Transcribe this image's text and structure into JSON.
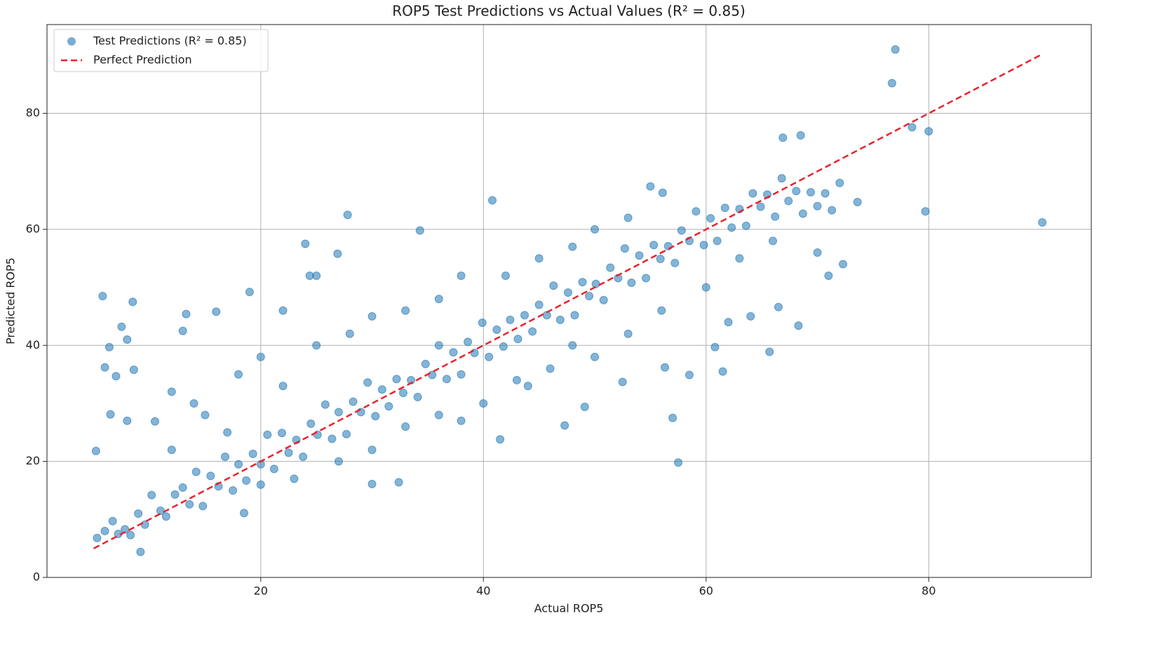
{
  "chart_data": {
    "type": "scatter",
    "title": "ROP5 Test Predictions vs Actual Values (R² = 0.85)",
    "x_label": "Actual ROP5",
    "y_label": "Predicted ROP5",
    "xlim": [
      0.8,
      94.6
    ],
    "ylim": [
      0,
      95.3
    ],
    "xticks": [
      20,
      40,
      60,
      80
    ],
    "yticks": [
      0,
      20,
      40,
      60,
      80
    ],
    "grid": true,
    "legend": "upper left",
    "series": [
      {
        "name": "Test Predictions (R² = 0.85)",
        "color": "#1f77b4",
        "mark": "point",
        "x": [
          5.3,
          6,
          6.7,
          7.2,
          7.8,
          8.3,
          9,
          9.6,
          10.2,
          11,
          11.5,
          12.3,
          13,
          13.6,
          14.2,
          14.8,
          15.5,
          16.2,
          16.8,
          17.5,
          18,
          18.7,
          19.3,
          20,
          20.6,
          21.2,
          21.9,
          22.5,
          23.2,
          23.8,
          24.5,
          25.1,
          25.8,
          26.4,
          27,
          27.7,
          28.3,
          29,
          29.6,
          30.3,
          30.9,
          31.5,
          32.2,
          32.8,
          33.5,
          34.1,
          34.8,
          35.4,
          36,
          36.7,
          37.3,
          38,
          38.6,
          39.2,
          39.9,
          40.5,
          41.2,
          41.8,
          42.4,
          43.1,
          43.7,
          44.4,
          45,
          45.7,
          46.3,
          46.9,
          47.6,
          48.2,
          48.9,
          49.5,
          50.1,
          50.8,
          51.4,
          52.1,
          52.7,
          53.3,
          54,
          54.6,
          55.3,
          55.9,
          56.6,
          57.2,
          57.8,
          58.5,
          59.1,
          59.8,
          60.4,
          61,
          61.7,
          62.3,
          63,
          63.6,
          64.2,
          64.9,
          65.5,
          66.2,
          66.8,
          67.4,
          68.1,
          68.7,
          69.4,
          70,
          70.7,
          71.3,
          72,
          15,
          18,
          20,
          22,
          25,
          28,
          30,
          33,
          36,
          38,
          42,
          45,
          48,
          50,
          53,
          20,
          23,
          27,
          30,
          33,
          36,
          40,
          43,
          46,
          50,
          53,
          56,
          60,
          63,
          66,
          70,
          71,
          12,
          14,
          17,
          62,
          64,
          48,
          44,
          38,
          77,
          76.7,
          78.5,
          80,
          79.7,
          90.2,
          66.9,
          68.5,
          57.5,
          57,
          41.5,
          40.8,
          27.8,
          34.3,
          24,
          26.9,
          5.8,
          8.5,
          9.2,
          5.2,
          61.5,
          65.7,
          60.8,
          66.5,
          68.3,
          72.3,
          73.6,
          55,
          56.1,
          32.4,
          30,
          47.3,
          49.1,
          58.5,
          56.3,
          52.5,
          7.5,
          8,
          6.4,
          6,
          7,
          8.6,
          6.5,
          8,
          10.5,
          12,
          18.5,
          13,
          13.3,
          16,
          19,
          22,
          24.4,
          25
        ],
        "values": [
          6.8,
          8,
          9.7,
          7.5,
          8.3,
          7.3,
          11,
          9.1,
          14.2,
          11.5,
          10.5,
          14.3,
          15.5,
          12.6,
          18.2,
          12.3,
          17.5,
          15.7,
          20.8,
          15,
          19.5,
          16.7,
          21.3,
          19.5,
          24.6,
          18.7,
          24.9,
          21.5,
          23.7,
          20.8,
          26.5,
          24.6,
          29.8,
          23.9,
          28.5,
          24.7,
          30.3,
          28.5,
          33.6,
          27.8,
          32.4,
          29.5,
          34.2,
          31.8,
          34,
          31.1,
          36.8,
          34.9,
          40,
          34.2,
          38.8,
          35,
          40.6,
          38.7,
          43.9,
          38,
          42.7,
          39.8,
          44.4,
          41.1,
          45.2,
          42.4,
          47,
          45.2,
          50.3,
          44.4,
          49.1,
          45.2,
          50.9,
          48.5,
          50.6,
          47.8,
          53.4,
          51.6,
          56.7,
          50.8,
          55.5,
          51.6,
          57.3,
          54.9,
          57.1,
          54.2,
          59.8,
          58,
          63.1,
          57.3,
          61.9,
          58,
          63.7,
          60.3,
          63.5,
          60.6,
          66.2,
          63.9,
          66,
          62.2,
          68.8,
          64.9,
          66.6,
          62.7,
          66.4,
          64,
          66.2,
          63.3,
          68,
          28,
          35,
          38,
          33,
          40,
          42,
          45,
          46,
          48,
          52,
          52,
          55,
          57,
          60,
          62,
          16,
          17,
          20,
          22,
          26,
          28,
          30,
          34,
          36,
          38,
          42,
          46,
          50,
          55,
          58,
          56,
          52,
          22,
          30,
          25,
          44,
          45,
          40,
          33,
          27,
          91,
          85.2,
          77.6,
          76.9,
          63.1,
          61.2,
          75.8,
          76.2,
          19.8,
          27.5,
          23.8,
          65,
          62.5,
          59.8,
          57.5,
          55.8,
          48.5,
          47.5,
          4.4,
          21.8,
          35.5,
          38.9,
          39.7,
          46.6,
          43.4,
          54,
          64.7,
          67.4,
          66.3,
          16.4,
          16.1,
          26.2,
          29.4,
          34.9,
          36.2,
          33.7,
          43.2,
          41,
          39.7,
          36.2,
          34.7,
          35.8,
          28.1,
          27,
          26.9,
          32,
          11.1,
          42.5,
          45.4,
          45.8,
          49.2,
          46,
          52,
          52
        ]
      },
      {
        "name": "Perfect Prediction",
        "color": "#e8232c",
        "mark": "dashed-line",
        "x": [
          5,
          90
        ],
        "values": [
          5,
          90
        ]
      }
    ]
  }
}
